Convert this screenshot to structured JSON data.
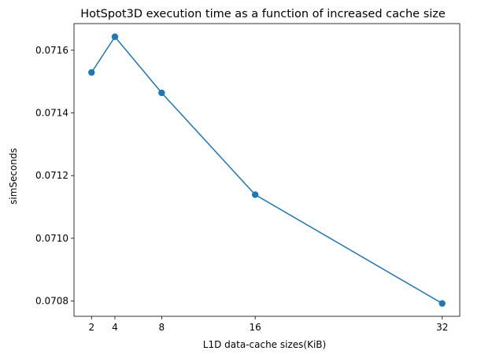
{
  "chart_data": {
    "type": "line",
    "title": "HotSpot3D execution time as a function of increased cache size",
    "xlabel": "L1D data-cache sizes(KiB)",
    "ylabel": "simSeconds",
    "x": [
      2,
      4,
      8,
      16,
      32
    ],
    "series": [
      {
        "values": [
          0.071529,
          0.071643,
          0.071464,
          0.071139,
          0.070792
        ],
        "color": "#1f77b4",
        "marker": "circle"
      }
    ],
    "xticks": [
      2,
      4,
      8,
      16,
      32
    ],
    "xtick_labels": [
      "2",
      "4",
      "8",
      "16",
      "32"
    ],
    "yticks": [
      0.0708,
      0.071,
      0.0712,
      0.0714,
      0.0716
    ],
    "ytick_labels": [
      "0.0708",
      "0.0710",
      "0.0712",
      "0.0714",
      "0.0716"
    ],
    "xlim": [
      0.5,
      33.5
    ],
    "ylim": [
      0.070751,
      0.071685
    ],
    "grid": false
  }
}
